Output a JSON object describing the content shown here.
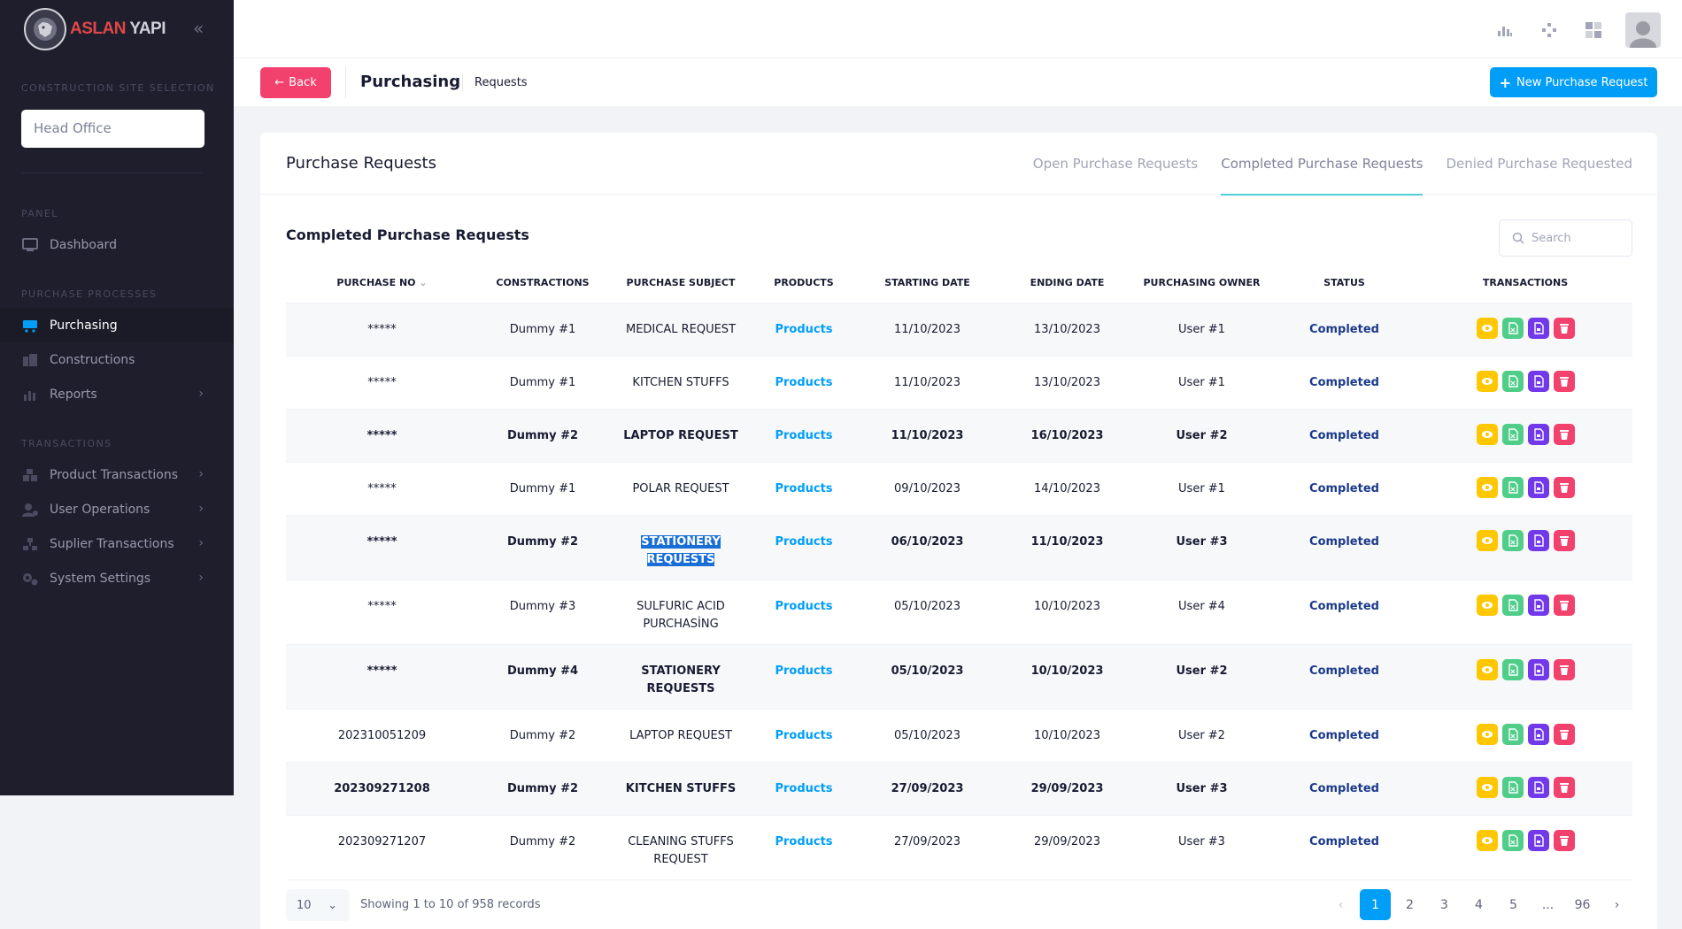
{
  "brand": {
    "part1": "ASLAN",
    "part2": " YAPI"
  },
  "sidebar": {
    "site_section": "CONSTRUCTION SITE SELECTION",
    "site_value": "Head Office",
    "panel_section": "PANEL",
    "dashboard": "Dashboard",
    "purchase_section": "PURCHASE PROCESSES",
    "purchasing": "Purchasing",
    "constructions": "Constructions",
    "reports": "Reports",
    "transactions_section": "TRANSACTIONS",
    "product_transactions": "Product Transactions",
    "user_operations": "User Operations",
    "suplier_transactions": "Suplier Transactions",
    "system_settings": "System Settings"
  },
  "toolbar": {
    "back": "Back",
    "title": "Purchasing",
    "breadcrumb": "Requests",
    "new_request": "New Purchase Request"
  },
  "card": {
    "title": "Purchase Requests",
    "tabs": [
      "Open Purchase Requests",
      "Completed Purchase Requests",
      "Denied Purchase Requested"
    ],
    "subtitle": "Completed Purchase Requests",
    "search_placeholder": "Search"
  },
  "table": {
    "headers": [
      "PURCHASE NO",
      "CONSTRACTIONS",
      "PURCHASE SUBJECT",
      "PRODUCTS",
      "STARTING DATE",
      "ENDING DATE",
      "PURCHASING OWNER",
      "STATUS",
      "TRANSACTIONS"
    ],
    "rows": [
      {
        "no": "*****",
        "cons": "Dummy #1",
        "subject": "MEDICAL REQUEST",
        "products": "Products",
        "start": "11/10/2023",
        "end": "13/10/2023",
        "owner": "User #1",
        "status": "Completed"
      },
      {
        "no": "*****",
        "cons": "Dummy #1",
        "subject": "KITCHEN STUFFS",
        "products": "Products",
        "start": "11/10/2023",
        "end": "13/10/2023",
        "owner": "User #1",
        "status": "Completed"
      },
      {
        "no": "*****",
        "cons": "Dummy #2",
        "subject": "LAPTOP REQUEST",
        "products": "Products",
        "start": "11/10/2023",
        "end": "16/10/2023",
        "owner": "User #2",
        "status": "Completed"
      },
      {
        "no": "*****",
        "cons": "Dummy #1",
        "subject": "POLAR REQUEST",
        "products": "Products",
        "start": "09/10/2023",
        "end": "14/10/2023",
        "owner": "User #1",
        "status": "Completed"
      },
      {
        "no": "*****",
        "cons": "Dummy #2",
        "subject1": "STATIONERY",
        "subject2": "REQUESTS",
        "products": "Products",
        "start": "06/10/2023",
        "end": "11/10/2023",
        "owner": "User #3",
        "status": "Completed"
      },
      {
        "no": "*****",
        "cons": "Dummy #3",
        "subject1": "SULFURIC ACID",
        "subject2": "PURCHASİNG",
        "products": "Products",
        "start": "05/10/2023",
        "end": "10/10/2023",
        "owner": "User #4",
        "status": "Completed"
      },
      {
        "no": "*****",
        "cons": "Dummy #4",
        "subject1": "STATIONERY",
        "subject2": "REQUESTS",
        "products": "Products",
        "start": "05/10/2023",
        "end": "10/10/2023",
        "owner": "User #2",
        "status": "Completed"
      },
      {
        "no": "202310051209",
        "cons": "Dummy #2",
        "subject": "LAPTOP REQUEST",
        "products": "Products",
        "start": "05/10/2023",
        "end": "10/10/2023",
        "owner": "User #2",
        "status": "Completed"
      },
      {
        "no": "202309271208",
        "cons": "Dummy #2",
        "subject": "KITCHEN STUFFS",
        "products": "Products",
        "start": "27/09/2023",
        "end": "29/09/2023",
        "owner": "User #3",
        "status": "Completed"
      },
      {
        "no": "202309271207",
        "cons": "Dummy #2",
        "subject1": "CLEANING STUFFS",
        "subject2": "REQUEST",
        "products": "Products",
        "start": "27/09/2023",
        "end": "29/09/2023",
        "owner": "User #3",
        "status": "Completed"
      }
    ]
  },
  "footer": {
    "page_size": "10",
    "showing": "Showing 1 to 10 of 958 records",
    "pages": [
      "1",
      "2",
      "3",
      "4",
      "5",
      "...",
      "96"
    ]
  },
  "colors": {
    "accent": "#009ef7",
    "danger": "#f1416c",
    "warning": "#ffc700",
    "success": "#50cd89",
    "purple": "#7239ea",
    "sidebar": "#1e1e2d"
  }
}
